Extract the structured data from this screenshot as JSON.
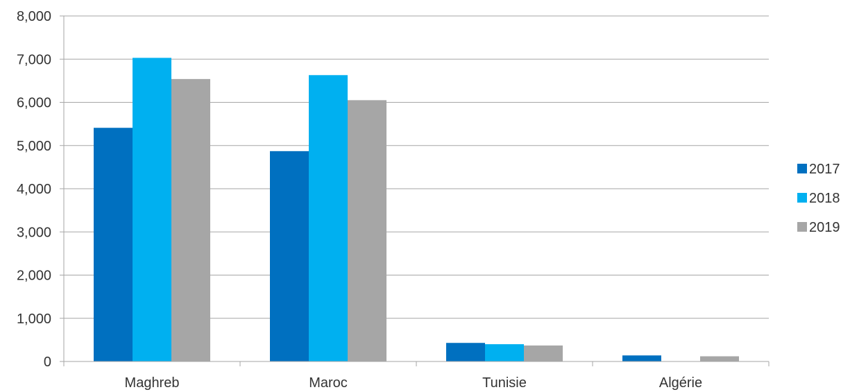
{
  "chart_data": {
    "type": "bar",
    "title": "",
    "xlabel": "",
    "ylabel": "",
    "categories": [
      "Maghreb",
      "Maroc",
      "Tunisie",
      "Algérie"
    ],
    "series": [
      {
        "name": "2017",
        "color": "#0070c0",
        "values": [
          5410,
          4870,
          430,
          140
        ]
      },
      {
        "name": "2018",
        "color": "#00b0f0",
        "values": [
          7030,
          6630,
          400,
          0
        ]
      },
      {
        "name": "2019",
        "color": "#a6a6a6",
        "values": [
          6540,
          6050,
          370,
          120
        ]
      }
    ],
    "ylim": [
      0,
      8000
    ],
    "yticks": [
      0,
      1000,
      2000,
      3000,
      4000,
      5000,
      6000,
      7000,
      8000
    ],
    "ytick_labels": [
      "0",
      "1,000",
      "2,000",
      "3,000",
      "4,000",
      "5,000",
      "6,000",
      "7,000",
      "8,000"
    ],
    "grid": true,
    "legend_position": "right"
  }
}
